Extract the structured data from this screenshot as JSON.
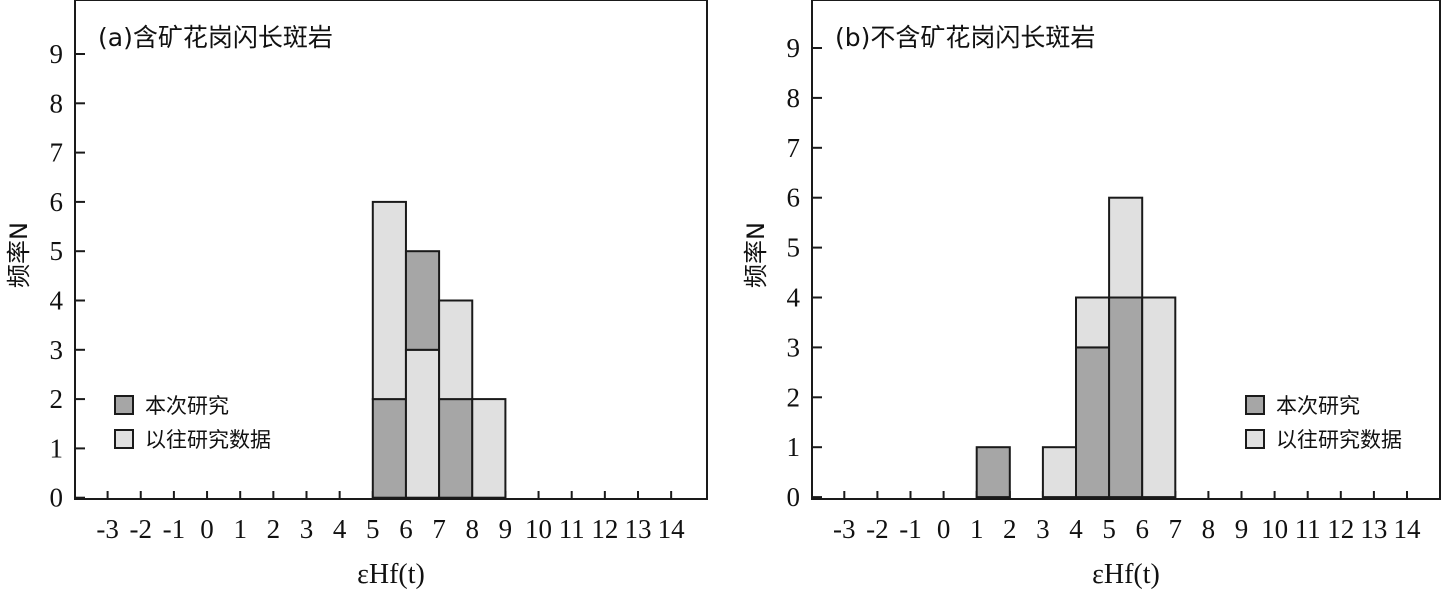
{
  "colors": {
    "this_study": "#a6a6a6",
    "previous_data": "#e0e0e0",
    "edge": "#1a1a1a"
  },
  "chart_data": [
    {
      "type": "bar",
      "title": "(a)含矿花岗闪长斑岩",
      "xlabel": "εHf(t)",
      "ylabel": "频率N",
      "ylim": [
        0,
        10
      ],
      "yticks": [
        "0",
        "1",
        "2",
        "3",
        "4",
        "5",
        "6",
        "7",
        "8",
        "9"
      ],
      "xticks": [
        "-3",
        "-2",
        "-1",
        "0",
        "1",
        "2",
        "3",
        "4",
        "5",
        "6",
        "7",
        "8",
        "9",
        "10",
        "11",
        "12",
        "13",
        "14"
      ],
      "grid": false,
      "stacked": true,
      "legend_position": "lower-left",
      "bins": [
        [
          5,
          6
        ],
        [
          6,
          7
        ],
        [
          7,
          8
        ],
        [
          8,
          9
        ]
      ],
      "series": [
        {
          "name": "本次研究",
          "values": [
            2,
            2,
            2,
            0
          ]
        },
        {
          "name": "以往研究数据",
          "values": [
            4,
            3,
            2,
            2
          ]
        }
      ],
      "stack_order": [
        [
          "本次研究",
          "以往研究数据"
        ],
        [
          "以往研究数据",
          "本次研究"
        ],
        [
          "本次研究",
          "以往研究数据"
        ],
        [
          "本次研究",
          "以往研究数据"
        ]
      ]
    },
    {
      "type": "bar",
      "title": "(b)不含矿花岗闪长斑岩",
      "xlabel": "εHf(t)",
      "ylabel": "频率N",
      "ylim": [
        0,
        10
      ],
      "yticks": [
        "0",
        "1",
        "2",
        "3",
        "4",
        "5",
        "6",
        "7",
        "8",
        "9"
      ],
      "xticks": [
        "-3",
        "-2",
        "-1",
        "0",
        "1",
        "2",
        "3",
        "4",
        "5",
        "6",
        "7",
        "8",
        "9",
        "10",
        "11",
        "12",
        "13",
        "14"
      ],
      "grid": false,
      "stacked": true,
      "legend_position": "lower-right",
      "bins": [
        [
          1,
          2
        ],
        [
          3,
          4
        ],
        [
          4,
          5
        ],
        [
          5,
          6
        ],
        [
          6,
          7
        ]
      ],
      "series": [
        {
          "name": "本次研究",
          "values": [
            1,
            0,
            3,
            4,
            0
          ]
        },
        {
          "name": "以往研究数据",
          "values": [
            0,
            1,
            1,
            2,
            4
          ]
        }
      ],
      "stack_order": [
        [
          "本次研究",
          "以往研究数据"
        ],
        [
          "本次研究",
          "以往研究数据"
        ],
        [
          "本次研究",
          "以往研究数据"
        ],
        [
          "本次研究",
          "以往研究数据"
        ],
        [
          "本次研究",
          "以往研究数据"
        ]
      ]
    }
  ]
}
